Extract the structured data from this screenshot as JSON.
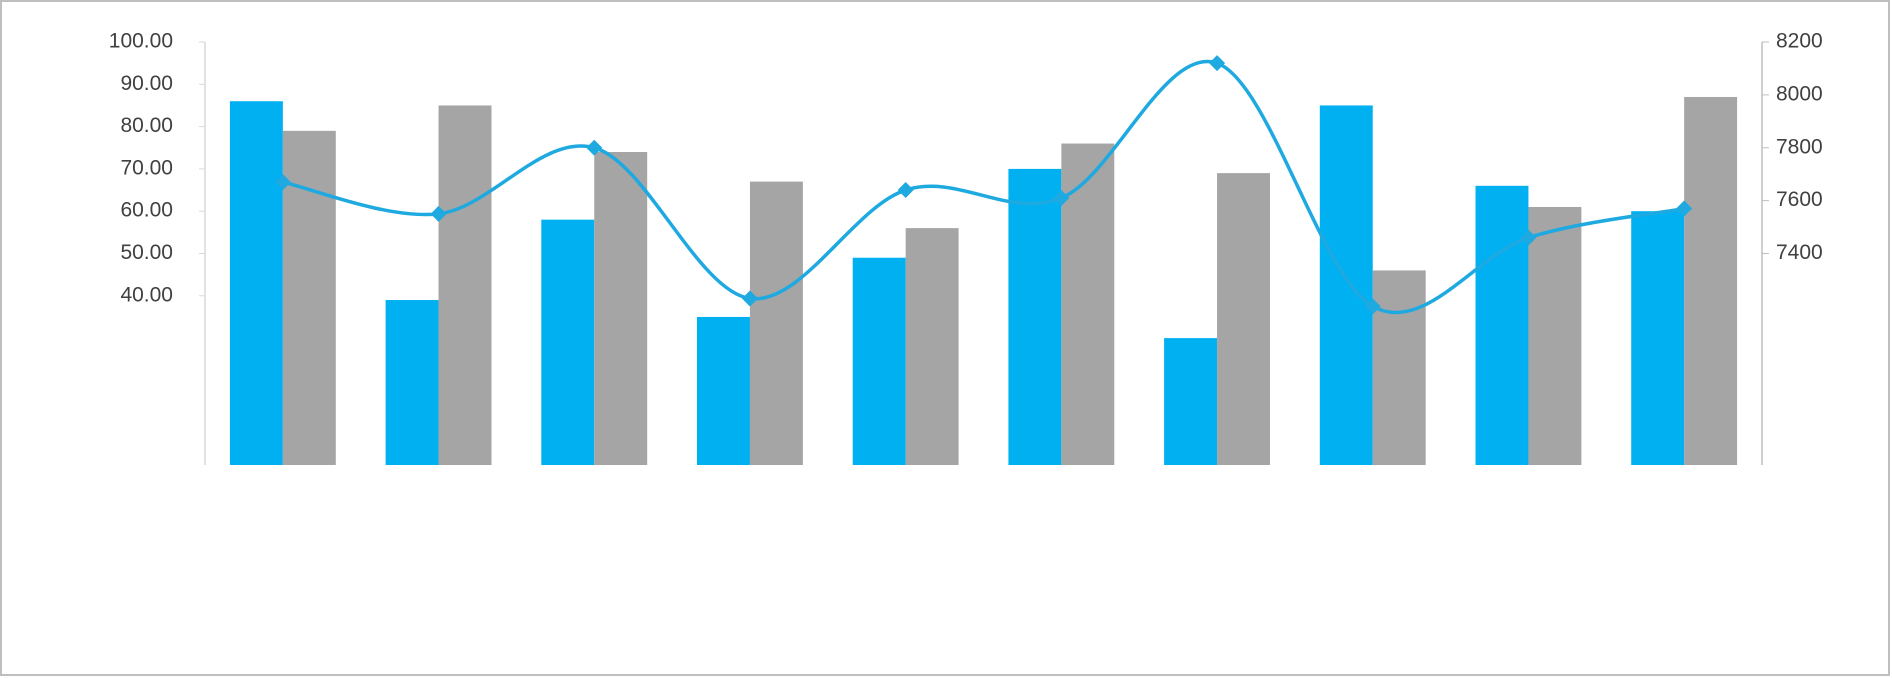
{
  "chart_data": {
    "type": "combo",
    "categories": [
      null,
      null,
      null,
      null,
      null,
      null,
      null,
      null,
      null,
      null
    ],
    "series": [
      {
        "type": "bar",
        "color": "#00b0f0",
        "values": [
          86,
          39,
          58,
          35,
          49,
          70,
          30,
          85,
          66,
          60
        ]
      },
      {
        "type": "bar",
        "color": "#a5a5a5",
        "values": [
          79,
          85,
          74,
          67,
          56,
          76,
          69,
          46,
          61,
          87
        ]
      },
      {
        "type": "line",
        "axis": "y2",
        "color": "#1ea9e1",
        "values": [
          7670,
          7550,
          7800,
          7230,
          7640,
          7610,
          8120,
          7200,
          7460,
          7570
        ]
      }
    ],
    "ylim": [
      0,
      100
    ],
    "yticks": [
      {
        "value": 40,
        "label": "40.00"
      },
      {
        "value": 50,
        "label": "50.00"
      },
      {
        "value": 60,
        "label": "60.00"
      },
      {
        "value": 70,
        "label": "70.00"
      },
      {
        "value": 80,
        "label": "80.00"
      },
      {
        "value": 90,
        "label": "90.00"
      },
      {
        "value": 100,
        "label": "100.00"
      }
    ],
    "y2lim": [
      6600,
      8200
    ],
    "y2ticks": [
      7400,
      7600,
      7800,
      8000,
      8200
    ]
  }
}
